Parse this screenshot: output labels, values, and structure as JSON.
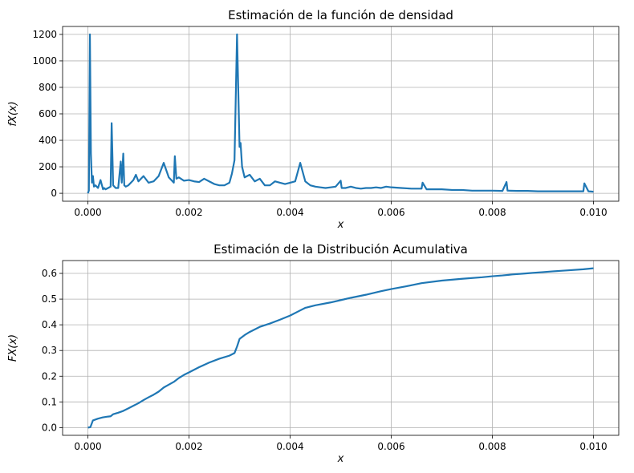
{
  "chart_data": [
    {
      "type": "line",
      "title": "Estimación de la función de densidad",
      "xlabel": "x",
      "ylabel": "f_X(x)",
      "ylabel_display": "fX(x)",
      "xlim": [
        -0.0005,
        0.0105
      ],
      "ylim": [
        -60,
        1260
      ],
      "x_ticks": [
        0.0,
        0.002,
        0.004,
        0.006,
        0.008,
        0.01
      ],
      "x_tick_labels": [
        "0.000",
        "0.002",
        "0.004",
        "0.006",
        "0.008",
        "0.010"
      ],
      "y_ticks": [
        0,
        200,
        400,
        600,
        800,
        1000,
        1200
      ],
      "y_tick_labels": [
        "0",
        "200",
        "400",
        "600",
        "800",
        "1000",
        "1200"
      ],
      "grid": true,
      "line_color": "#1f77b4",
      "series": [
        {
          "x": [
            0.0,
            2e-05,
            4e-05,
            6e-05,
            8e-05,
            0.0001,
            0.00012,
            0.00015,
            0.0002,
            0.00025,
            0.0003,
            0.00032,
            0.00035,
            0.0004,
            0.00045,
            0.00047,
            0.0005,
            0.00055,
            0.0006,
            0.00065,
            0.00067,
            0.0007,
            0.00072,
            0.00075,
            0.0008,
            0.0009,
            0.00095,
            0.001,
            0.0011,
            0.0012,
            0.0013,
            0.0014,
            0.0015,
            0.0016,
            0.0017,
            0.00172,
            0.00175,
            0.0018,
            0.0019,
            0.002,
            0.0021,
            0.0022,
            0.0023,
            0.0024,
            0.0025,
            0.0026,
            0.0027,
            0.0028,
            0.00285,
            0.0029,
            0.00295,
            0.003,
            0.00302,
            0.00305,
            0.0031,
            0.0032,
            0.0033,
            0.0034,
            0.0035,
            0.0036,
            0.0037,
            0.0038,
            0.0039,
            0.004,
            0.0041,
            0.0042,
            0.0043,
            0.0044,
            0.0045,
            0.0046,
            0.0047,
            0.0048,
            0.0049,
            0.005,
            0.00502,
            0.0051,
            0.0052,
            0.0053,
            0.0054,
            0.0055,
            0.0056,
            0.0057,
            0.0058,
            0.0059,
            0.006,
            0.0062,
            0.0064,
            0.0066,
            0.00662,
            0.0067,
            0.0068,
            0.007,
            0.0072,
            0.0074,
            0.0076,
            0.0078,
            0.008,
            0.0082,
            0.00828,
            0.0083,
            0.0085,
            0.0087,
            0.0089,
            0.0091,
            0.0093,
            0.0095,
            0.0097,
            0.0098,
            0.00982,
            0.0099,
            0.01
          ],
          "y": [
            0,
            20,
            1200,
            300,
            80,
            130,
            50,
            60,
            40,
            100,
            30,
            40,
            30,
            40,
            50,
            530,
            60,
            40,
            40,
            240,
            80,
            300,
            60,
            50,
            60,
            100,
            140,
            90,
            130,
            80,
            90,
            130,
            230,
            120,
            80,
            280,
            110,
            120,
            95,
            100,
            90,
            85,
            110,
            90,
            70,
            60,
            60,
            80,
            150,
            250,
            1200,
            350,
            380,
            200,
            120,
            140,
            90,
            110,
            60,
            60,
            90,
            80,
            70,
            80,
            90,
            230,
            90,
            60,
            50,
            45,
            40,
            45,
            50,
            95,
            40,
            40,
            50,
            40,
            35,
            40,
            40,
            45,
            40,
            50,
            45,
            40,
            35,
            35,
            80,
            30,
            30,
            30,
            25,
            25,
            20,
            20,
            20,
            18,
            85,
            20,
            18,
            18,
            15,
            15,
            15,
            15,
            15,
            15,
            75,
            15,
            12
          ]
        }
      ]
    },
    {
      "type": "line",
      "title": "Estimación de la Distribución Acumulativa",
      "xlabel": "x",
      "ylabel": "F_X(x)",
      "ylabel_display": "FX(x)",
      "xlim": [
        -0.0005,
        0.0105
      ],
      "ylim": [
        -0.03,
        0.65
      ],
      "x_ticks": [
        0.0,
        0.002,
        0.004,
        0.006,
        0.008,
        0.01
      ],
      "x_tick_labels": [
        "0.000",
        "0.002",
        "0.004",
        "0.006",
        "0.008",
        "0.010"
      ],
      "y_ticks": [
        0.0,
        0.1,
        0.2,
        0.3,
        0.4,
        0.5,
        0.6
      ],
      "y_tick_labels": [
        "0.0",
        "0.1",
        "0.2",
        "0.3",
        "0.4",
        "0.5",
        "0.6"
      ],
      "grid": true,
      "line_color": "#1f77b4",
      "series": [
        {
          "x": [
            0.0,
            5e-05,
            0.0001,
            0.0002,
            0.0003,
            0.0004,
            0.00045,
            0.0005,
            0.0006,
            0.0007,
            0.0008,
            0.0009,
            0.001,
            0.0011,
            0.0012,
            0.0013,
            0.0014,
            0.0015,
            0.0016,
            0.0017,
            0.0018,
            0.0019,
            0.002,
            0.0022,
            0.0024,
            0.0026,
            0.0028,
            0.0029,
            0.00295,
            0.003,
            0.0031,
            0.0032,
            0.0034,
            0.0036,
            0.0038,
            0.004,
            0.0042,
            0.0043,
            0.0045,
            0.0048,
            0.005,
            0.0052,
            0.0055,
            0.0058,
            0.006,
            0.0063,
            0.0066,
            0.007,
            0.0074,
            0.0078,
            0.008,
            0.0082,
            0.0084,
            0.0086,
            0.0088,
            0.009,
            0.0092,
            0.0095,
            0.0098,
            0.01
          ],
          "y": [
            0.0,
            0.002,
            0.028,
            0.035,
            0.04,
            0.043,
            0.044,
            0.052,
            0.058,
            0.065,
            0.075,
            0.085,
            0.095,
            0.107,
            0.118,
            0.128,
            0.14,
            0.156,
            0.167,
            0.178,
            0.193,
            0.205,
            0.215,
            0.235,
            0.253,
            0.268,
            0.28,
            0.29,
            0.315,
            0.345,
            0.36,
            0.372,
            0.392,
            0.405,
            0.42,
            0.436,
            0.456,
            0.466,
            0.476,
            0.487,
            0.496,
            0.505,
            0.517,
            0.531,
            0.539,
            0.55,
            0.562,
            0.572,
            0.579,
            0.585,
            0.589,
            0.592,
            0.596,
            0.599,
            0.602,
            0.605,
            0.608,
            0.612,
            0.616,
            0.62
          ]
        }
      ]
    }
  ]
}
